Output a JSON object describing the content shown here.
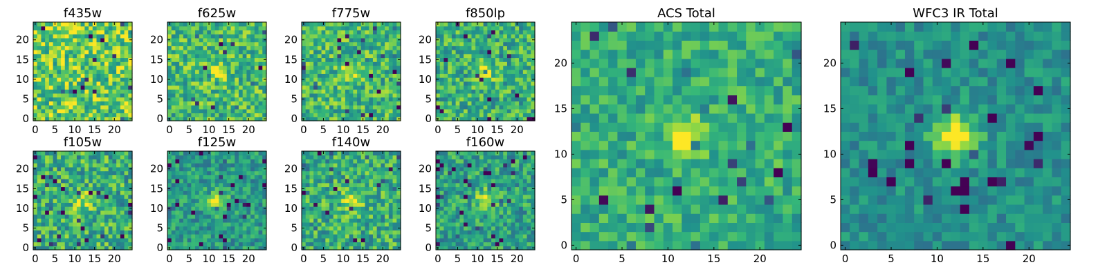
{
  "colors": {
    "colormap": [
      "#440154",
      "#31688e",
      "#21918c",
      "#35b779",
      "#8fd744",
      "#fde725"
    ],
    "frame": "#000000",
    "background": "#ffffff"
  },
  "chart_data": [
    {
      "type": "heatmap",
      "title": "f435w",
      "grid_size": [
        25,
        25
      ],
      "xlim": [
        0,
        24
      ],
      "ylim": [
        0,
        24
      ],
      "x_ticks": [
        "0",
        "5",
        "10",
        "15",
        "20"
      ],
      "y_ticks": [
        "0",
        "5",
        "10",
        "15",
        "20"
      ],
      "source_peak": [
        12,
        12
      ],
      "source_strength": 0.0,
      "source_width": 1.6,
      "noise_level": 0.33,
      "base_level": 0.72,
      "seed": 11
    },
    {
      "type": "heatmap",
      "title": "f625w",
      "grid_size": [
        25,
        25
      ],
      "xlim": [
        0,
        24
      ],
      "ylim": [
        0,
        24
      ],
      "x_ticks": [
        "0",
        "5",
        "10",
        "15",
        "20"
      ],
      "y_ticks": [
        "0",
        "5",
        "10",
        "15",
        "20"
      ],
      "source_peak": [
        12,
        12
      ],
      "source_strength": 0.3,
      "source_width": 1.6,
      "noise_level": 0.28,
      "base_level": 0.62,
      "seed": 23
    },
    {
      "type": "heatmap",
      "title": "f775w",
      "grid_size": [
        25,
        25
      ],
      "xlim": [
        0,
        24
      ],
      "ylim": [
        0,
        24
      ],
      "x_ticks": [
        "0",
        "5",
        "10",
        "15",
        "20"
      ],
      "y_ticks": [
        "0",
        "5",
        "10",
        "15",
        "20"
      ],
      "source_peak": [
        12,
        12
      ],
      "source_strength": 0.35,
      "source_width": 1.6,
      "noise_level": 0.28,
      "base_level": 0.6,
      "seed": 37
    },
    {
      "type": "heatmap",
      "title": "f850lp",
      "grid_size": [
        25,
        25
      ],
      "xlim": [
        0,
        24
      ],
      "ylim": [
        0,
        24
      ],
      "x_ticks": [
        "0",
        "5",
        "10",
        "15",
        "20"
      ],
      "y_ticks": [
        "0",
        "5",
        "10",
        "15",
        "20"
      ],
      "source_peak": [
        12,
        12
      ],
      "source_strength": 0.35,
      "source_width": 1.6,
      "noise_level": 0.28,
      "base_level": 0.56,
      "seed": 41
    },
    {
      "type": "heatmap",
      "title": "f105w",
      "grid_size": [
        25,
        25
      ],
      "xlim": [
        0,
        24
      ],
      "ylim": [
        0,
        24
      ],
      "x_ticks": [
        "0",
        "5",
        "10",
        "15",
        "20"
      ],
      "y_ticks": [
        "0",
        "5",
        "10",
        "15",
        "20"
      ],
      "source_peak": [
        12,
        12
      ],
      "source_strength": 0.35,
      "source_width": 1.8,
      "noise_level": 0.3,
      "base_level": 0.55,
      "seed": 53
    },
    {
      "type": "heatmap",
      "title": "f125w",
      "grid_size": [
        25,
        25
      ],
      "xlim": [
        0,
        24
      ],
      "ylim": [
        0,
        24
      ],
      "x_ticks": [
        "0",
        "5",
        "10",
        "15",
        "20"
      ],
      "y_ticks": [
        "0",
        "5",
        "10",
        "15",
        "20"
      ],
      "source_peak": [
        12,
        12
      ],
      "source_strength": 0.5,
      "source_width": 1.8,
      "noise_level": 0.22,
      "base_level": 0.45,
      "seed": 67
    },
    {
      "type": "heatmap",
      "title": "f140w",
      "grid_size": [
        25,
        25
      ],
      "xlim": [
        0,
        24
      ],
      "ylim": [
        0,
        24
      ],
      "x_ticks": [
        "0",
        "5",
        "10",
        "15",
        "20"
      ],
      "y_ticks": [
        "0",
        "5",
        "10",
        "15",
        "20"
      ],
      "source_peak": [
        12,
        12
      ],
      "source_strength": 0.4,
      "source_width": 1.8,
      "noise_level": 0.28,
      "base_level": 0.55,
      "seed": 79
    },
    {
      "type": "heatmap",
      "title": "f160w",
      "grid_size": [
        25,
        25
      ],
      "xlim": [
        0,
        24
      ],
      "ylim": [
        0,
        24
      ],
      "x_ticks": [
        "0",
        "5",
        "10",
        "15",
        "20"
      ],
      "y_ticks": [
        "0",
        "5",
        "10",
        "15",
        "20"
      ],
      "source_peak": [
        12,
        12
      ],
      "source_strength": 0.45,
      "source_width": 1.8,
      "noise_level": 0.26,
      "base_level": 0.48,
      "seed": 83
    },
    {
      "type": "heatmap",
      "title": "ACS Total",
      "grid_size": [
        25,
        25
      ],
      "xlim": [
        0,
        24
      ],
      "ylim": [
        0,
        24
      ],
      "x_ticks": [
        "0",
        "5",
        "10",
        "15",
        "20"
      ],
      "y_ticks": [
        "0",
        "5",
        "10",
        "15",
        "20"
      ],
      "source_peak": [
        12,
        12
      ],
      "source_strength": 0.55,
      "source_width": 1.5,
      "noise_level": 0.2,
      "base_level": 0.55,
      "seed": 97
    },
    {
      "type": "heatmap",
      "title": "WFC3 IR Total",
      "grid_size": [
        25,
        25
      ],
      "xlim": [
        0,
        24
      ],
      "ylim": [
        0,
        24
      ],
      "x_ticks": [
        "0",
        "5",
        "10",
        "15",
        "20"
      ],
      "y_ticks": [
        "0",
        "5",
        "10",
        "15",
        "20"
      ],
      "source_peak": [
        12,
        12
      ],
      "source_strength": 0.62,
      "source_width": 1.7,
      "noise_level": 0.16,
      "base_level": 0.4,
      "seed": 101
    }
  ]
}
